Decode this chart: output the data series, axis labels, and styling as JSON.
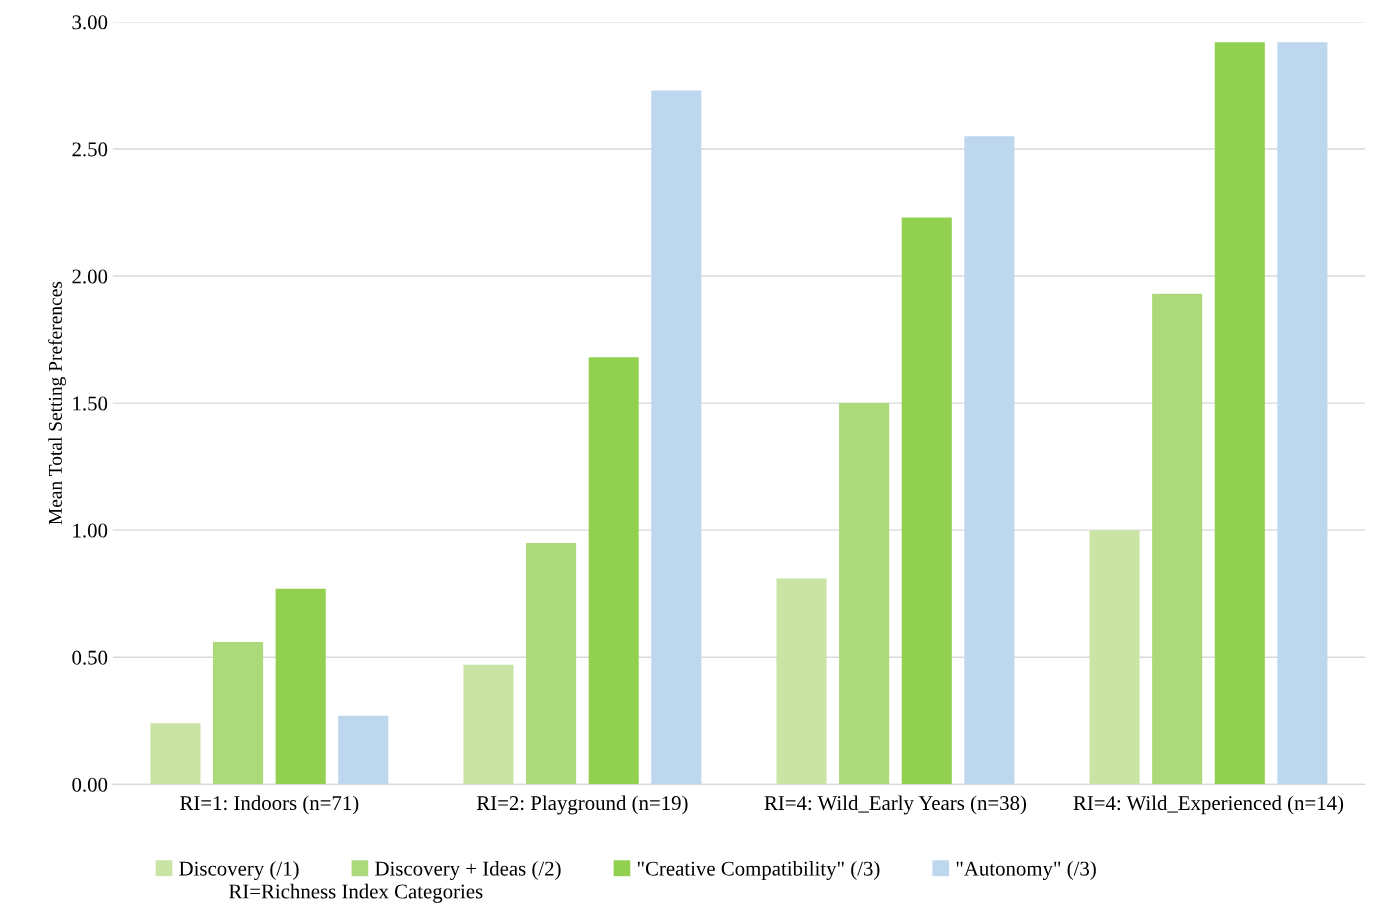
{
  "chart_data": {
    "type": "bar",
    "ylabel": "Mean Total Setting Preferences",
    "categories": [
      "RI=1: Indoors (n=71)",
      "RI=2: Playground (n=19)",
      "RI=4: Wild_Early Years (n=38)",
      "RI=4: Wild_Experienced (n=14)"
    ],
    "series": [
      {
        "name": "Discovery (/1)",
        "color": "#c9e4a4",
        "values": [
          0.24,
          0.47,
          0.81,
          1.0
        ]
      },
      {
        "name": "Discovery + Ideas (/2)",
        "color": "#acd97a",
        "values": [
          0.56,
          0.95,
          1.5,
          1.93
        ]
      },
      {
        "name": "\"Creative Compatibility\" (/3)",
        "color": "#92d050",
        "values": [
          0.77,
          1.68,
          2.23,
          2.92
        ]
      },
      {
        "name": "\"Autonomy\" (/3)",
        "color": "#bdd7ee",
        "values": [
          0.27,
          2.73,
          2.55,
          2.92
        ]
      }
    ],
    "ylim": [
      0,
      3
    ],
    "yticks": [
      {
        "value": 0,
        "label": "0.00"
      },
      {
        "value": 0.5,
        "label": "0.50"
      },
      {
        "value": 1,
        "label": "1.00"
      },
      {
        "value": 1.5,
        "label": "1.50"
      },
      {
        "value": 2,
        "label": "2.00"
      },
      {
        "value": 2.5,
        "label": "2.50"
      },
      {
        "value": 3,
        "label": "3.00"
      }
    ],
    "grid": "y",
    "legend": "bottom",
    "annotations": [
      "RI=Richness Index Categories"
    ]
  }
}
